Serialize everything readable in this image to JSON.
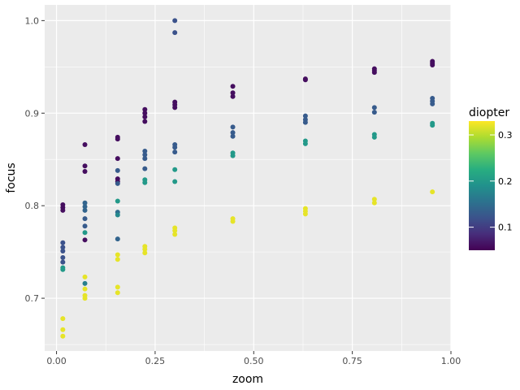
{
  "chart_data": {
    "type": "scatter",
    "title": "",
    "xlabel": "zoom",
    "ylabel": "focus",
    "xlim": [
      -0.03,
      1.0
    ],
    "ylim": [
      0.643,
      1.017
    ],
    "x_ticks": [
      {
        "value": 0.0,
        "label": "0.00"
      },
      {
        "value": 0.25,
        "label": "0.25"
      },
      {
        "value": 0.5,
        "label": "0.50"
      },
      {
        "value": 0.75,
        "label": "0.75"
      },
      {
        "value": 1.0,
        "label": "1.00"
      }
    ],
    "y_ticks": [
      {
        "value": 0.7,
        "label": "0.7"
      },
      {
        "value": 0.8,
        "label": "0.8"
      },
      {
        "value": 0.9,
        "label": "0.9"
      },
      {
        "value": 1.0,
        "label": "1.0"
      }
    ],
    "grid": true,
    "color_scale": {
      "title": "diopter",
      "palette": "viridis",
      "min": 0.05,
      "max": 0.33,
      "ticks": [
        {
          "value": 0.1,
          "label": "0.1"
        },
        {
          "value": 0.2,
          "label": "0.2"
        },
        {
          "value": 0.3,
          "label": "0.3"
        }
      ],
      "position": "right"
    },
    "points": [
      {
        "x": 0.016,
        "y": 0.801,
        "d": 0.06
      },
      {
        "x": 0.016,
        "y": 0.798,
        "d": 0.06
      },
      {
        "x": 0.016,
        "y": 0.795,
        "d": 0.06
      },
      {
        "x": 0.016,
        "y": 0.76,
        "d": 0.12
      },
      {
        "x": 0.016,
        "y": 0.755,
        "d": 0.12
      },
      {
        "x": 0.016,
        "y": 0.751,
        "d": 0.12
      },
      {
        "x": 0.016,
        "y": 0.744,
        "d": 0.12
      },
      {
        "x": 0.016,
        "y": 0.739,
        "d": 0.12
      },
      {
        "x": 0.016,
        "y": 0.733,
        "d": 0.2
      },
      {
        "x": 0.016,
        "y": 0.731,
        "d": 0.2
      },
      {
        "x": 0.016,
        "y": 0.678,
        "d": 0.32
      },
      {
        "x": 0.016,
        "y": 0.666,
        "d": 0.32
      },
      {
        "x": 0.016,
        "y": 0.659,
        "d": 0.32
      },
      {
        "x": 0.072,
        "y": 0.866,
        "d": 0.06
      },
      {
        "x": 0.072,
        "y": 0.843,
        "d": 0.06
      },
      {
        "x": 0.072,
        "y": 0.837,
        "d": 0.06
      },
      {
        "x": 0.072,
        "y": 0.763,
        "d": 0.06
      },
      {
        "x": 0.072,
        "y": 0.803,
        "d": 0.14
      },
      {
        "x": 0.072,
        "y": 0.799,
        "d": 0.14
      },
      {
        "x": 0.072,
        "y": 0.795,
        "d": 0.14
      },
      {
        "x": 0.072,
        "y": 0.786,
        "d": 0.13
      },
      {
        "x": 0.072,
        "y": 0.778,
        "d": 0.13
      },
      {
        "x": 0.072,
        "y": 0.771,
        "d": 0.2
      },
      {
        "x": 0.072,
        "y": 0.716,
        "d": 0.17
      },
      {
        "x": 0.072,
        "y": 0.723,
        "d": 0.32
      },
      {
        "x": 0.072,
        "y": 0.71,
        "d": 0.32
      },
      {
        "x": 0.072,
        "y": 0.703,
        "d": 0.32
      },
      {
        "x": 0.072,
        "y": 0.7,
        "d": 0.32
      },
      {
        "x": 0.155,
        "y": 0.874,
        "d": 0.06
      },
      {
        "x": 0.155,
        "y": 0.872,
        "d": 0.06
      },
      {
        "x": 0.155,
        "y": 0.851,
        "d": 0.06
      },
      {
        "x": 0.155,
        "y": 0.829,
        "d": 0.06
      },
      {
        "x": 0.155,
        "y": 0.826,
        "d": 0.06
      },
      {
        "x": 0.155,
        "y": 0.838,
        "d": 0.13
      },
      {
        "x": 0.155,
        "y": 0.824,
        "d": 0.13
      },
      {
        "x": 0.155,
        "y": 0.805,
        "d": 0.2
      },
      {
        "x": 0.155,
        "y": 0.793,
        "d": 0.15
      },
      {
        "x": 0.155,
        "y": 0.79,
        "d": 0.18
      },
      {
        "x": 0.155,
        "y": 0.764,
        "d": 0.14
      },
      {
        "x": 0.155,
        "y": 0.747,
        "d": 0.32
      },
      {
        "x": 0.155,
        "y": 0.742,
        "d": 0.32
      },
      {
        "x": 0.155,
        "y": 0.712,
        "d": 0.32
      },
      {
        "x": 0.155,
        "y": 0.706,
        "d": 0.32
      },
      {
        "x": 0.224,
        "y": 0.904,
        "d": 0.06
      },
      {
        "x": 0.224,
        "y": 0.9,
        "d": 0.06
      },
      {
        "x": 0.224,
        "y": 0.896,
        "d": 0.06
      },
      {
        "x": 0.224,
        "y": 0.891,
        "d": 0.06
      },
      {
        "x": 0.224,
        "y": 0.859,
        "d": 0.13
      },
      {
        "x": 0.224,
        "y": 0.855,
        "d": 0.13
      },
      {
        "x": 0.224,
        "y": 0.851,
        "d": 0.13
      },
      {
        "x": 0.224,
        "y": 0.84,
        "d": 0.13
      },
      {
        "x": 0.224,
        "y": 0.828,
        "d": 0.2
      },
      {
        "x": 0.224,
        "y": 0.825,
        "d": 0.2
      },
      {
        "x": 0.224,
        "y": 0.756,
        "d": 0.32
      },
      {
        "x": 0.224,
        "y": 0.753,
        "d": 0.32
      },
      {
        "x": 0.224,
        "y": 0.749,
        "d": 0.32
      },
      {
        "x": 0.3,
        "y": 1.0,
        "d": 0.12
      },
      {
        "x": 0.3,
        "y": 0.987,
        "d": 0.12
      },
      {
        "x": 0.3,
        "y": 0.912,
        "d": 0.06
      },
      {
        "x": 0.3,
        "y": 0.909,
        "d": 0.06
      },
      {
        "x": 0.3,
        "y": 0.906,
        "d": 0.06
      },
      {
        "x": 0.3,
        "y": 0.866,
        "d": 0.13
      },
      {
        "x": 0.3,
        "y": 0.863,
        "d": 0.13
      },
      {
        "x": 0.3,
        "y": 0.858,
        "d": 0.13
      },
      {
        "x": 0.3,
        "y": 0.839,
        "d": 0.2
      },
      {
        "x": 0.3,
        "y": 0.826,
        "d": 0.2
      },
      {
        "x": 0.3,
        "y": 0.776,
        "d": 0.32
      },
      {
        "x": 0.3,
        "y": 0.773,
        "d": 0.32
      },
      {
        "x": 0.3,
        "y": 0.769,
        "d": 0.32
      },
      {
        "x": 0.447,
        "y": 0.929,
        "d": 0.06
      },
      {
        "x": 0.447,
        "y": 0.922,
        "d": 0.06
      },
      {
        "x": 0.447,
        "y": 0.918,
        "d": 0.06
      },
      {
        "x": 0.447,
        "y": 0.885,
        "d": 0.13
      },
      {
        "x": 0.447,
        "y": 0.879,
        "d": 0.13
      },
      {
        "x": 0.447,
        "y": 0.875,
        "d": 0.13
      },
      {
        "x": 0.447,
        "y": 0.857,
        "d": 0.2
      },
      {
        "x": 0.447,
        "y": 0.854,
        "d": 0.2
      },
      {
        "x": 0.447,
        "y": 0.786,
        "d": 0.32
      },
      {
        "x": 0.447,
        "y": 0.783,
        "d": 0.32
      },
      {
        "x": 0.631,
        "y": 0.937,
        "d": 0.06
      },
      {
        "x": 0.631,
        "y": 0.936,
        "d": 0.06
      },
      {
        "x": 0.631,
        "y": 0.897,
        "d": 0.13
      },
      {
        "x": 0.631,
        "y": 0.893,
        "d": 0.13
      },
      {
        "x": 0.631,
        "y": 0.89,
        "d": 0.13
      },
      {
        "x": 0.631,
        "y": 0.87,
        "d": 0.2
      },
      {
        "x": 0.631,
        "y": 0.867,
        "d": 0.2
      },
      {
        "x": 0.631,
        "y": 0.797,
        "d": 0.32
      },
      {
        "x": 0.631,
        "y": 0.794,
        "d": 0.32
      },
      {
        "x": 0.631,
        "y": 0.791,
        "d": 0.32
      },
      {
        "x": 0.806,
        "y": 0.948,
        "d": 0.06
      },
      {
        "x": 0.806,
        "y": 0.946,
        "d": 0.06
      },
      {
        "x": 0.806,
        "y": 0.944,
        "d": 0.06
      },
      {
        "x": 0.806,
        "y": 0.906,
        "d": 0.13
      },
      {
        "x": 0.806,
        "y": 0.901,
        "d": 0.13
      },
      {
        "x": 0.806,
        "y": 0.877,
        "d": 0.2
      },
      {
        "x": 0.806,
        "y": 0.874,
        "d": 0.2
      },
      {
        "x": 0.806,
        "y": 0.807,
        "d": 0.32
      },
      {
        "x": 0.806,
        "y": 0.803,
        "d": 0.32
      },
      {
        "x": 0.953,
        "y": 0.956,
        "d": 0.06
      },
      {
        "x": 0.953,
        "y": 0.954,
        "d": 0.06
      },
      {
        "x": 0.953,
        "y": 0.952,
        "d": 0.06
      },
      {
        "x": 0.953,
        "y": 0.916,
        "d": 0.13
      },
      {
        "x": 0.953,
        "y": 0.913,
        "d": 0.13
      },
      {
        "x": 0.953,
        "y": 0.91,
        "d": 0.13
      },
      {
        "x": 0.953,
        "y": 0.889,
        "d": 0.2
      },
      {
        "x": 0.953,
        "y": 0.887,
        "d": 0.2
      },
      {
        "x": 0.953,
        "y": 0.815,
        "d": 0.32
      }
    ]
  }
}
